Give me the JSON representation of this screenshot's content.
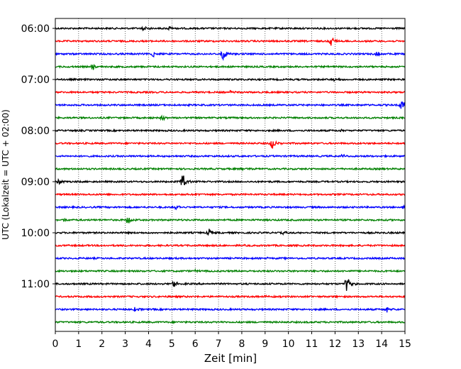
{
  "chart_data": {
    "type": "line",
    "title": "",
    "xlabel": "Zeit  [min]",
    "ylabel": "UTC (Lokalzeit = UTC + 02:00)",
    "xlim": [
      0,
      15
    ],
    "xticks": [
      0,
      1,
      2,
      3,
      4,
      5,
      6,
      7,
      8,
      9,
      10,
      11,
      12,
      13,
      14,
      15
    ],
    "xtick_labels": [
      "0",
      "1",
      "2",
      "3",
      "4",
      "5",
      "6",
      "7",
      "8",
      "9",
      "10",
      "11",
      "12",
      "13",
      "14",
      "15"
    ],
    "y_tick_labels": [
      {
        "label": "06:00",
        "trace": 0
      },
      {
        "label": "07:00",
        "trace": 4
      },
      {
        "label": "08:00",
        "trace": 8
      },
      {
        "label": "09:00",
        "trace": 12
      },
      {
        "label": "10:00",
        "trace": 16
      },
      {
        "label": "11:00",
        "trace": 20
      }
    ],
    "grid": "vertical-dotted",
    "trace_minutes": 15,
    "colors": [
      "#000000",
      "#ff0000",
      "#0000ff",
      "#008000"
    ],
    "traces": [
      {
        "start": "06:00",
        "color": "#000000",
        "events": [
          {
            "t": 3.8,
            "amp": 0.28
          },
          {
            "t": 4.9,
            "amp": 0.2
          }
        ]
      },
      {
        "start": "06:15",
        "color": "#ff0000",
        "events": [
          {
            "t": 11.85,
            "amp": 0.65
          }
        ]
      },
      {
        "start": "06:30",
        "color": "#0000ff",
        "events": [
          {
            "t": 4.2,
            "amp": 0.3
          },
          {
            "t": 7.2,
            "amp": 0.75
          },
          {
            "t": 13.8,
            "amp": 0.25
          }
        ]
      },
      {
        "start": "06:45",
        "color": "#008000",
        "events": [
          {
            "t": 1.6,
            "amp": 0.35
          }
        ]
      },
      {
        "start": "07:00",
        "color": "#000000",
        "events": [
          {
            "t": 12.0,
            "amp": 0.15
          }
        ]
      },
      {
        "start": "07:15",
        "color": "#ff0000",
        "events": [
          {
            "t": 7.5,
            "amp": 0.15
          }
        ]
      },
      {
        "start": "07:30",
        "color": "#0000ff",
        "events": [
          {
            "t": 14.85,
            "amp": 0.8
          }
        ]
      },
      {
        "start": "07:45",
        "color": "#008000",
        "events": [
          {
            "t": 4.6,
            "amp": 0.25
          }
        ]
      },
      {
        "start": "08:00",
        "color": "#000000",
        "events": [
          {
            "t": 12.2,
            "amp": 0.12
          }
        ]
      },
      {
        "start": "08:15",
        "color": "#ff0000",
        "events": [
          {
            "t": 9.3,
            "amp": 0.65
          }
        ]
      },
      {
        "start": "08:30",
        "color": "#0000ff",
        "events": [
          {
            "t": 12.3,
            "amp": 0.18
          }
        ]
      },
      {
        "start": "08:45",
        "color": "#008000",
        "events": [
          {
            "t": 8.0,
            "amp": 0.12
          }
        ]
      },
      {
        "start": "09:00",
        "color": "#000000",
        "events": [
          {
            "t": 0.15,
            "amp": 0.3
          },
          {
            "t": 5.45,
            "amp": 0.9
          }
        ]
      },
      {
        "start": "09:15",
        "color": "#ff0000",
        "events": [
          {
            "t": 6.0,
            "amp": 0.1
          }
        ]
      },
      {
        "start": "09:30",
        "color": "#0000ff",
        "events": [
          {
            "t": 5.2,
            "amp": 0.22
          },
          {
            "t": 14.9,
            "amp": 0.25
          }
        ]
      },
      {
        "start": "09:45",
        "color": "#008000",
        "events": [
          {
            "t": 0.3,
            "amp": 0.2
          },
          {
            "t": 3.1,
            "amp": 0.45
          }
        ]
      },
      {
        "start": "10:00",
        "color": "#000000",
        "events": [
          {
            "t": 6.6,
            "amp": 0.35
          },
          {
            "t": 9.8,
            "amp": 0.15
          }
        ]
      },
      {
        "start": "10:15",
        "color": "#ff0000",
        "events": [
          {
            "t": 8.0,
            "amp": 0.1
          }
        ]
      },
      {
        "start": "10:30",
        "color": "#0000ff",
        "events": [
          {
            "t": 9.0,
            "amp": 0.18
          }
        ]
      },
      {
        "start": "10:45",
        "color": "#008000",
        "events": [
          {
            "t": 6.0,
            "amp": 0.1
          }
        ]
      },
      {
        "start": "11:00",
        "color": "#000000",
        "events": [
          {
            "t": 5.1,
            "amp": 0.4
          },
          {
            "t": 12.5,
            "amp": 0.9
          }
        ]
      },
      {
        "start": "11:15",
        "color": "#ff0000",
        "events": [
          {
            "t": 9.0,
            "amp": 0.12
          }
        ]
      },
      {
        "start": "11:30",
        "color": "#0000ff",
        "events": [
          {
            "t": 3.4,
            "amp": 0.25
          },
          {
            "t": 14.2,
            "amp": 0.3
          }
        ]
      },
      {
        "start": "11:45",
        "color": "#008000",
        "events": [
          {
            "t": 7.0,
            "amp": 0.12
          }
        ]
      }
    ]
  }
}
